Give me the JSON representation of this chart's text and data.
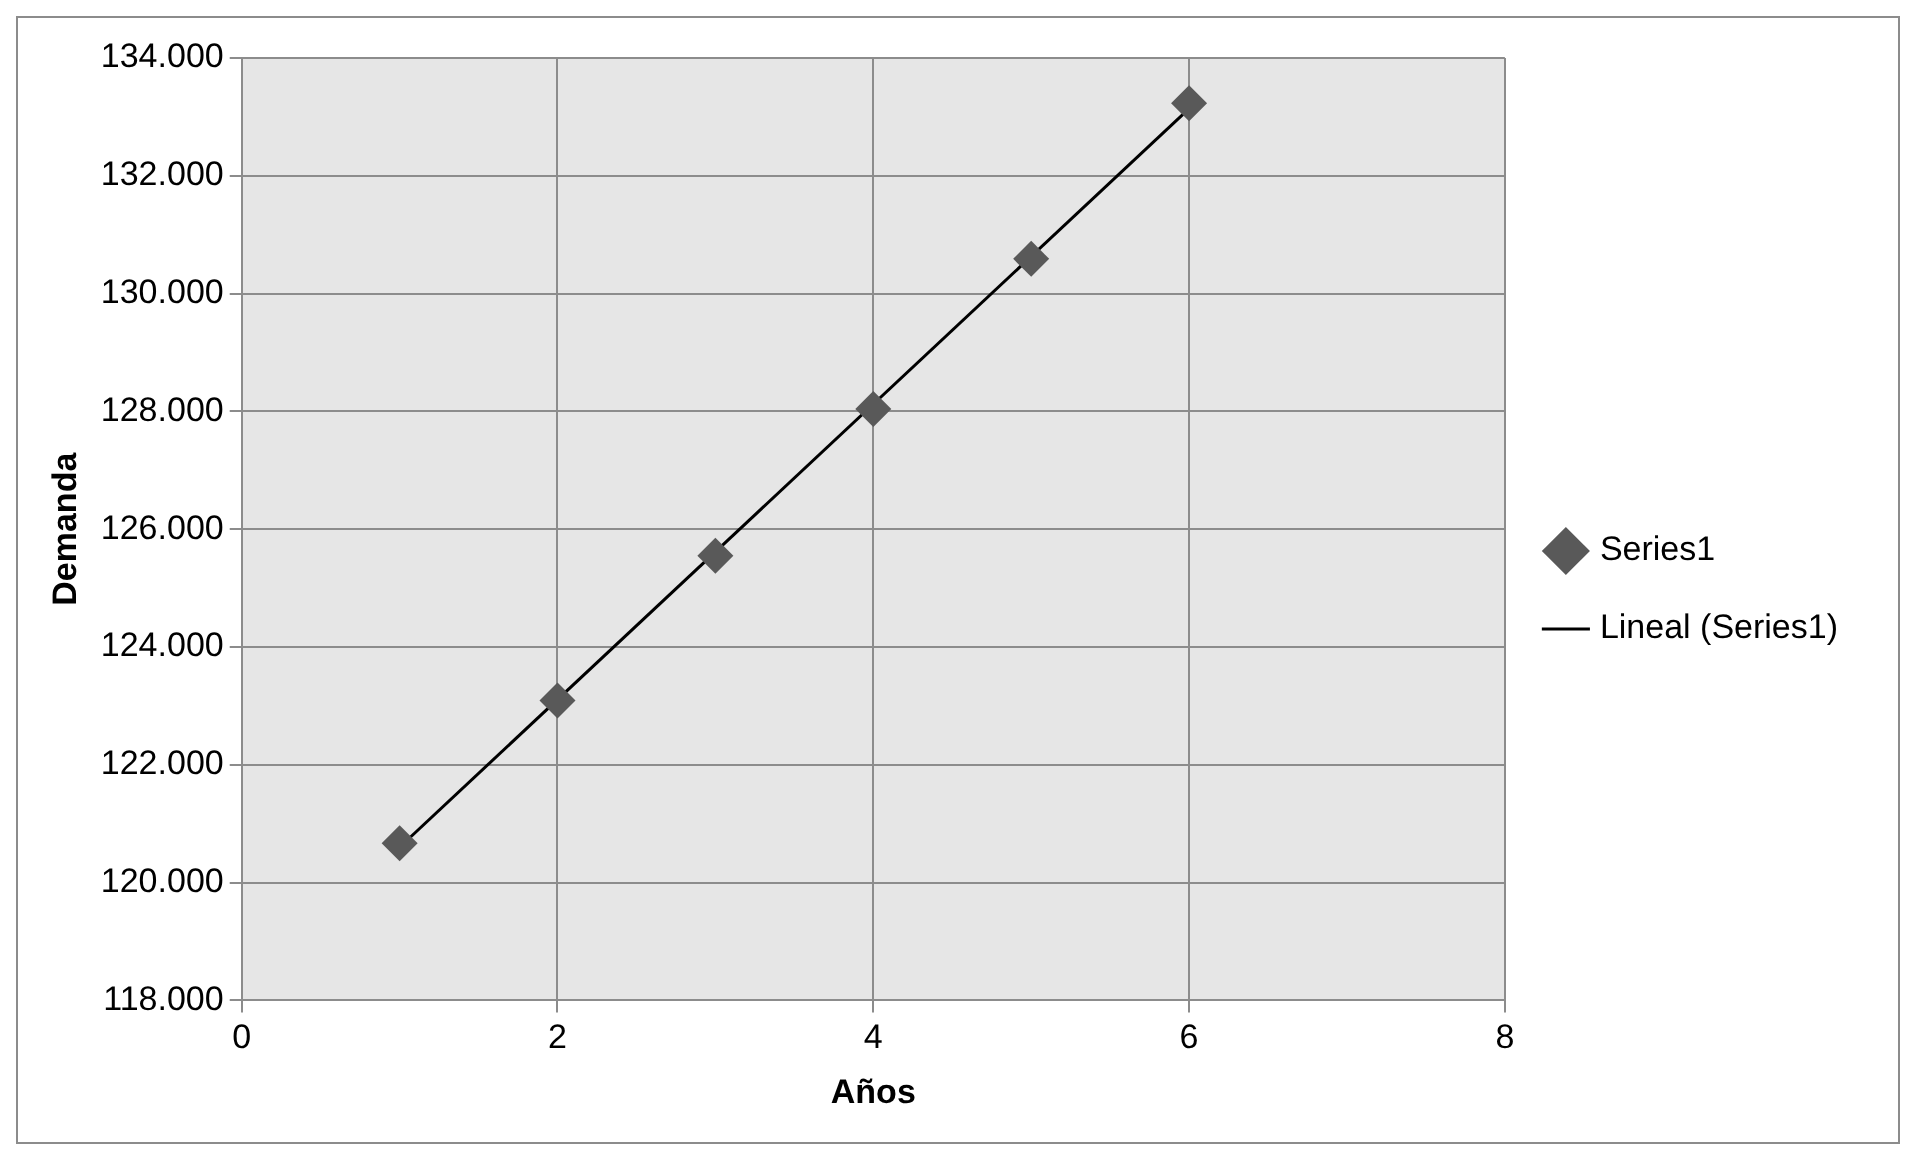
{
  "chart_data": {
    "type": "scatter",
    "xlabel": "Años",
    "ylabel": "Demanda",
    "series": [
      {
        "name": "Series1",
        "color": "#595959",
        "x": [
          1,
          2,
          3,
          4,
          5,
          6
        ],
        "values": [
          120670,
          123090,
          125550,
          128040,
          130590,
          133230
        ],
        "marker": "diamond"
      },
      {
        "name": "Lineal (Series1)",
        "type": "line",
        "color": "#000000",
        "x": [
          1,
          6
        ],
        "values": [
          120600,
          133140
        ],
        "marker": "none",
        "line_style": "solid"
      }
    ],
    "xlim": [
      0,
      8
    ],
    "xticks": [
      0,
      2,
      4,
      6,
      8
    ],
    "ylim": [
      118000,
      134000
    ],
    "yticks": [
      {
        "value": 118000,
        "label": "118.000"
      },
      {
        "value": 120000,
        "label": "120.000"
      },
      {
        "value": 122000,
        "label": "122.000"
      },
      {
        "value": 124000,
        "label": "124.000"
      },
      {
        "value": 126000,
        "label": "126.000"
      },
      {
        "value": 128000,
        "label": "128.000"
      },
      {
        "value": 130000,
        "label": "130.000"
      },
      {
        "value": 132000,
        "label": "132.000"
      },
      {
        "value": 134000,
        "label": "134.000"
      }
    ],
    "grid": true,
    "legend": "right"
  }
}
